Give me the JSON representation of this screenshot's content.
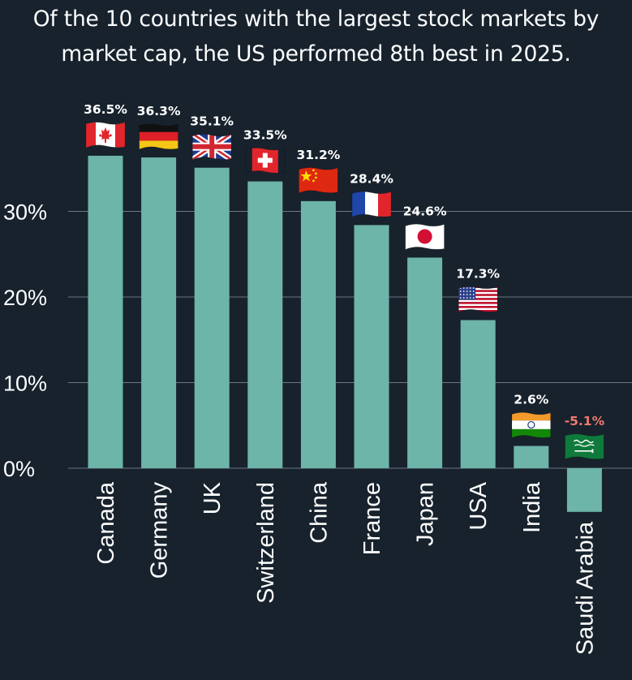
{
  "chart_data": {
    "type": "bar",
    "title": "Of the 10 countries with the largest stock markets by market cap, the US performed 8th best in 2025.",
    "title_lines": [
      "Of the 10 countries with the largest stock markets by",
      "market cap, the US performed 8th best in 2025."
    ],
    "categories": [
      "Canada",
      "Germany",
      "UK",
      "Switzerland",
      "China",
      "France",
      "Japan",
      "USA",
      "India",
      "Saudi Arabia"
    ],
    "values": [
      36.5,
      36.3,
      35.1,
      33.5,
      31.2,
      28.4,
      24.6,
      17.3,
      2.6,
      -5.1
    ],
    "value_labels": [
      "36.5%",
      "36.3%",
      "35.1%",
      "33.5%",
      "31.2%",
      "28.4%",
      "24.6%",
      "17.3%",
      "2.6%",
      "-5.1%"
    ],
    "flags": [
      "canada-flag",
      "germany-flag",
      "uk-flag",
      "switzerland-flag",
      "china-flag",
      "france-flag",
      "japan-flag",
      "usa-flag",
      "india-flag",
      "saudi-arabia-flag"
    ],
    "yticks": [
      0,
      10,
      20,
      30
    ],
    "ytick_labels": [
      "0%",
      "10%",
      "20%",
      "30%"
    ],
    "ylim": [
      -5.1,
      36.5
    ],
    "xlabel": "",
    "ylabel": "",
    "grid": true
  },
  "colors": {
    "background": "#17222d",
    "bar": "#6db5a8",
    "grid": "#6b7782",
    "text": "#ffffff",
    "negative_label": "#f07a6e"
  }
}
